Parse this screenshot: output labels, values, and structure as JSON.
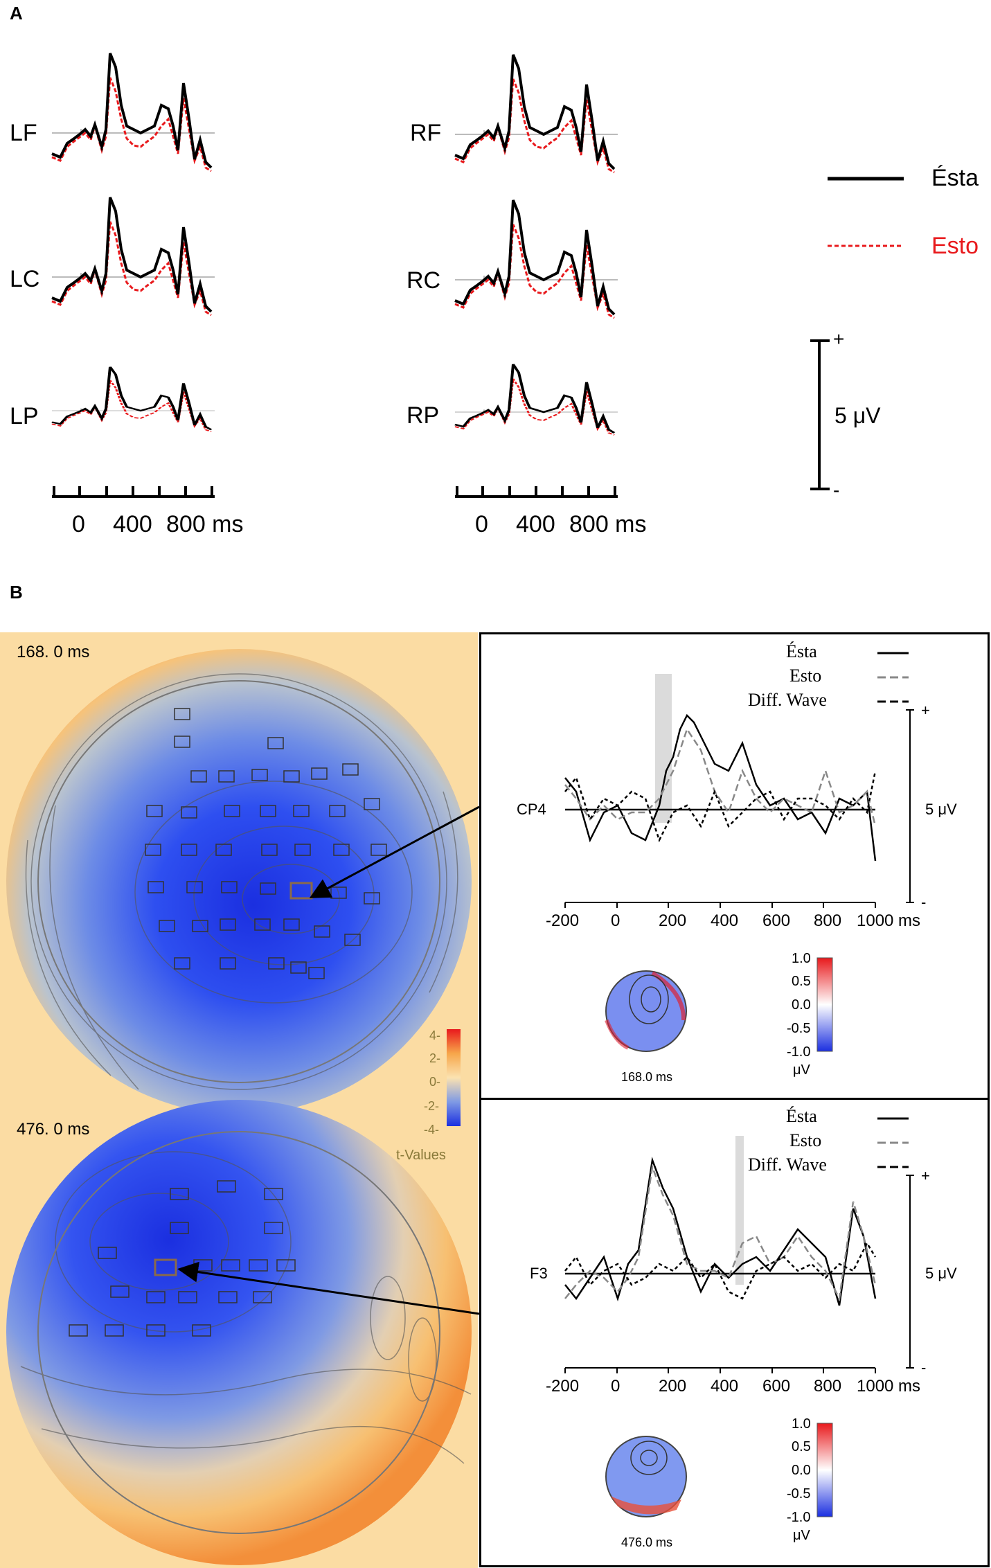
{
  "panel_a": {
    "letter": "A",
    "left_labels": [
      "LF",
      "LC",
      "LP"
    ],
    "right_labels": [
      "RF",
      "RC",
      "RP"
    ],
    "time_axis": {
      "ticks": [
        "0",
        "400",
        "800 ms"
      ]
    },
    "legend": {
      "solid": "Ésta",
      "dashed": "Esto"
    },
    "scale_bar": {
      "plus": "+",
      "minus": "-",
      "label": "5 μV"
    },
    "colors": {
      "esta": "#000000",
      "esto": "#e8191c"
    }
  },
  "panel_b": {
    "letter": "B",
    "maps": [
      {
        "time_label": "168. 0 ms"
      },
      {
        "time_label": "476. 0 ms"
      }
    ],
    "tvalue_colorbar": {
      "ticks": [
        "4-",
        "2-",
        "0-",
        "-2-",
        "-4-"
      ],
      "title": "t-Values"
    },
    "insets": [
      {
        "legend": [
          "Ésta",
          "Esto",
          "Diff. Wave"
        ],
        "channel": "CP4",
        "scale_plus": "+",
        "scale_minus": "-",
        "scale_label": "5 μV",
        "x_ticks": [
          "-200",
          "0",
          "200",
          "400",
          "600",
          "800",
          "1000 ms"
        ],
        "topo_time": "168.0 ms",
        "colorbar_ticks": [
          "1.0",
          "0.5",
          "0.0",
          "-0.5",
          "-1.0"
        ],
        "colorbar_unit": "μV"
      },
      {
        "legend": [
          "Ésta",
          "Esto",
          "Diff. Wave"
        ],
        "channel": "F3",
        "scale_plus": "+",
        "scale_minus": "-",
        "scale_label": "5 μV",
        "x_ticks": [
          "-200",
          "0",
          "200",
          "400",
          "600",
          "800",
          "1000 ms"
        ],
        "topo_time": "476.0 ms",
        "colorbar_ticks": [
          "1.0",
          "0.5",
          "0.0",
          "-0.5",
          "-1.0"
        ],
        "colorbar_unit": "μV"
      }
    ]
  }
}
